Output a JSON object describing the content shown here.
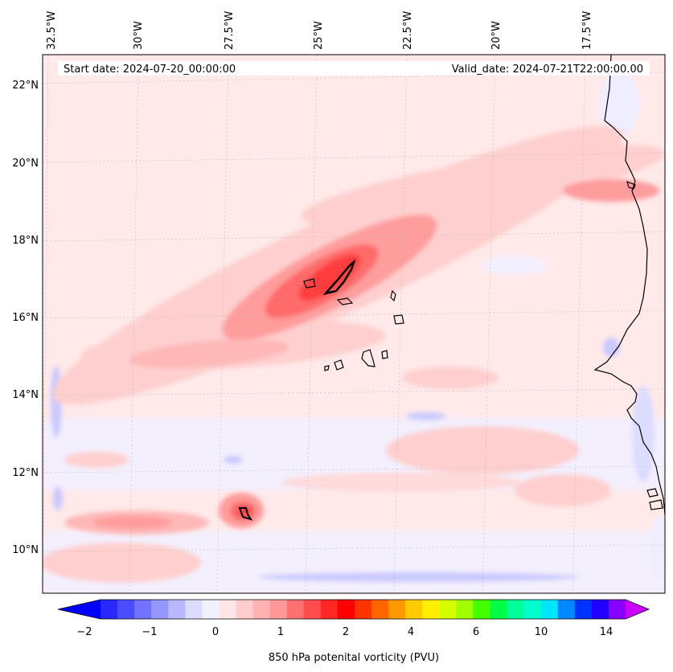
{
  "header": {
    "start_date": "Start date: 2024-07-20_00:00:00",
    "valid_date": "Valid_date: 2024-07-21T22:00:00.00"
  },
  "longitude_labels": [
    "32.5°W",
    "30°W",
    "27.5°W",
    "25°W",
    "22.5°W",
    "20°W",
    "17.5°W"
  ],
  "latitude_labels": [
    "22°N",
    "20°N",
    "18°N",
    "16°N",
    "14°N",
    "12°N",
    "10°N"
  ],
  "colorbar": {
    "label": "850 hPa potenital vorticity (PVU)",
    "tick_labels": [
      "−2",
      "−1",
      "0",
      "1",
      "2",
      "4",
      "6",
      "10",
      "14"
    ],
    "extend": "both",
    "colors": [
      "#0000ff",
      "#2828ff",
      "#4c4cff",
      "#7272ff",
      "#9696ff",
      "#b8b8ff",
      "#dcdcff",
      "#f0f0ff",
      "#ffe6e6",
      "#ffcccc",
      "#ffb2b2",
      "#ff9999",
      "#ff7070",
      "#ff4c4c",
      "#ff2626",
      "#ff0000",
      "#ff3300",
      "#ff6600",
      "#ff9900",
      "#ffcc00",
      "#ffee00",
      "#d4ff00",
      "#a0ff00",
      "#44ff00",
      "#00ff44",
      "#00ff99",
      "#00ffcc",
      "#00e5ff",
      "#0088ff",
      "#0033ff",
      "#2200ff",
      "#8800ff",
      "#cc00ff"
    ]
  },
  "map": {
    "projection_note_colors": {
      "background": "#ffe9e9",
      "light_red": "#ffcfcf",
      "mid_red": "#ff9c9c",
      "red": "#ff6a6a",
      "strong_red": "#ff3c3c",
      "light_blue": "#eeeeff",
      "blue": "#c9c9ff",
      "coast": "#000000"
    }
  }
}
